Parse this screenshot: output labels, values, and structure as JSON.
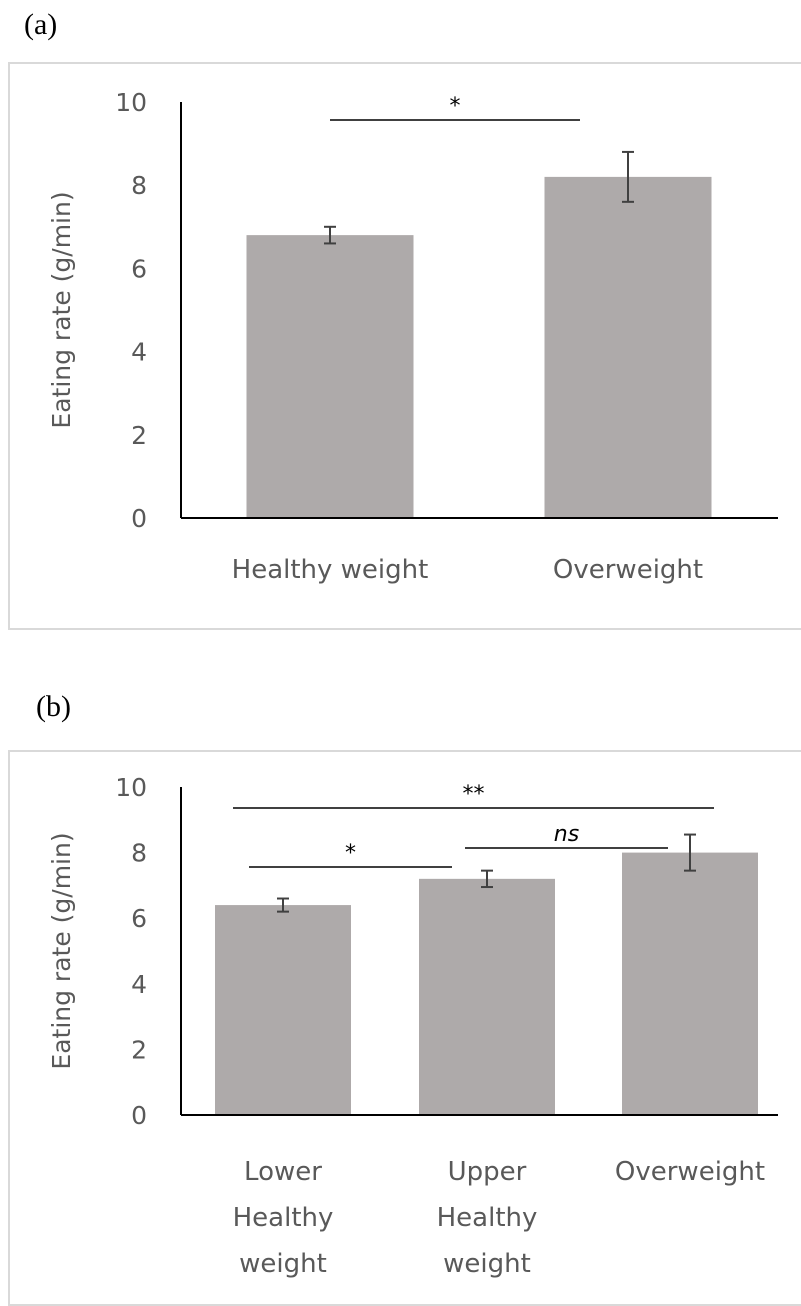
{
  "panels": {
    "a": {
      "label": "(a)"
    },
    "b": {
      "label": "(b)"
    }
  },
  "colors": {
    "bar": "#aeaaaa",
    "axis": "#000000",
    "text": "#595959",
    "error": "#404040"
  },
  "chart_data": [
    {
      "type": "bar",
      "panel": "(a)",
      "categories": [
        "Healthy weight",
        "Overweight"
      ],
      "category_lines": [
        [
          "Healthy weight"
        ],
        [
          "Overweight"
        ]
      ],
      "values": [
        6.8,
        8.2
      ],
      "errors": [
        0.2,
        0.6
      ],
      "ylabel": "Eating rate (g/min)",
      "ylim": [
        0,
        10
      ],
      "yticks": [
        0,
        2,
        4,
        6,
        8,
        10
      ],
      "grid": false,
      "significance": [
        {
          "from": 0,
          "to": 1,
          "label": "*",
          "italic": false
        }
      ]
    },
    {
      "type": "bar",
      "panel": "(b)",
      "categories": [
        "Lower Healthy weight",
        "Upper Healthy weight",
        "Overweight"
      ],
      "category_lines": [
        [
          "Lower",
          "Healthy",
          "weight"
        ],
        [
          "Upper",
          "Healthy",
          "weight"
        ],
        [
          "Overweight"
        ]
      ],
      "values": [
        6.4,
        7.2,
        8.0
      ],
      "errors": [
        0.2,
        0.25,
        0.55
      ],
      "ylabel": "Eating rate (g/min)",
      "ylim": [
        0,
        10
      ],
      "yticks": [
        0,
        2,
        4,
        6,
        8,
        10
      ],
      "grid": false,
      "significance": [
        {
          "from": 0,
          "to": 2,
          "label": "**",
          "italic": false
        },
        {
          "from": 1,
          "to": 2,
          "label": "ns",
          "italic": true
        },
        {
          "from": 0,
          "to": 1,
          "label": "*",
          "italic": false
        }
      ]
    }
  ]
}
